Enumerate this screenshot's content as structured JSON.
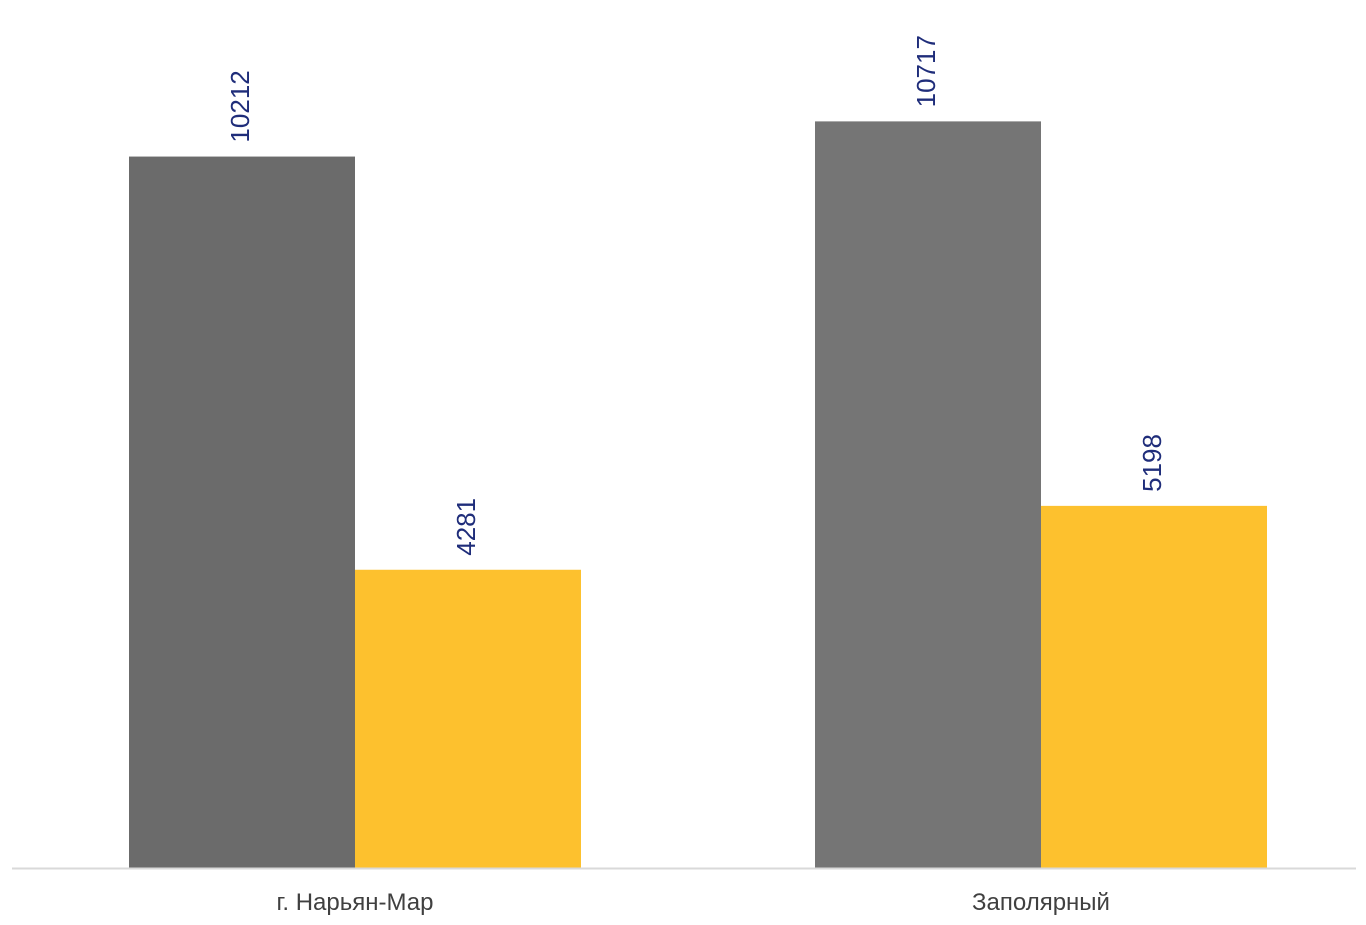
{
  "chart_data": {
    "type": "bar",
    "title": "",
    "xlabel": "",
    "ylabel": "",
    "categories": [
      "г. Нарьян-Мар",
      "Заполярный"
    ],
    "series": [
      {
        "values": [
          10212,
          10717
        ],
        "colors": [
          "#6B6B6B",
          "#757575"
        ]
      },
      {
        "values": [
          4281,
          5198
        ],
        "colors": [
          "#FDC12E",
          "#FDC12E"
        ]
      }
    ],
    "ylim": [
      0,
      12000
    ],
    "grid": false,
    "legend": "none",
    "data_labels": "vertical, above bars",
    "baseline_color": "#D9D9D9"
  }
}
